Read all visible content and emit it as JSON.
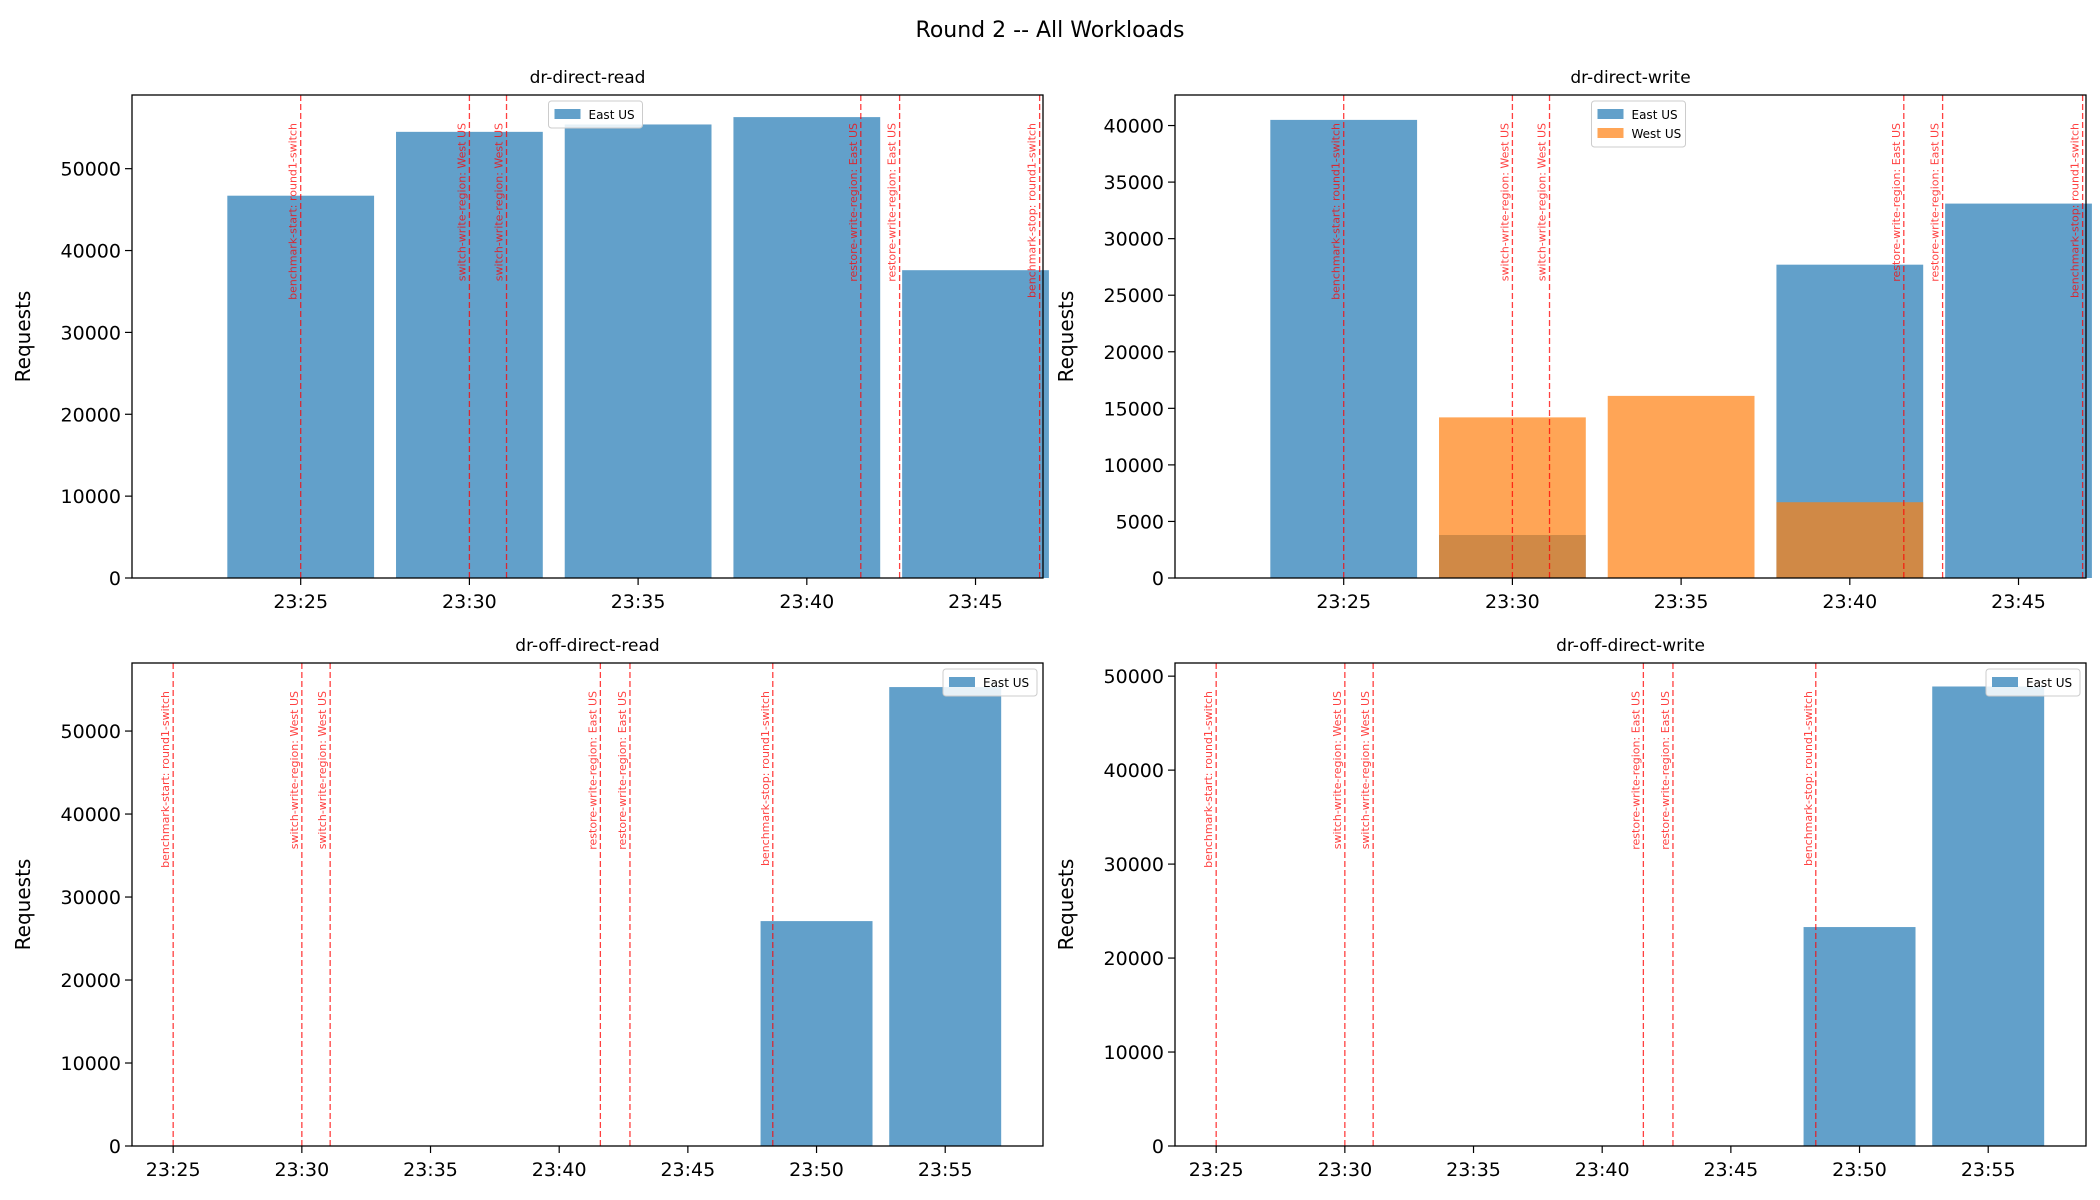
{
  "figure_title": "Round 2 -- All Workloads",
  "colors": {
    "East US": "#1f77b4",
    "West US": "#ff7f0e",
    "event_line": "#ff0000"
  },
  "chart_data": [
    {
      "type": "bar",
      "title": "dr-direct-read",
      "xlabel": "",
      "ylabel": "Requests",
      "ylim": [
        0,
        59000
      ],
      "yticks": [
        0,
        10000,
        20000,
        30000,
        40000,
        50000
      ],
      "x_minutes_range": [
        1400.0,
        1427.0
      ],
      "xticks": [
        {
          "value": 1405,
          "label": "23:25"
        },
        {
          "value": 1410,
          "label": "23:30"
        },
        {
          "value": 1415,
          "label": "23:35"
        },
        {
          "value": 1420,
          "label": "23:40"
        },
        {
          "value": 1425,
          "label": "23:45"
        }
      ],
      "bar_width_minutes": 4.35,
      "categories": [
        "23:25",
        "23:30",
        "23:35",
        "23:40",
        "23:45"
      ],
      "category_minutes": [
        1405,
        1410,
        1415,
        1420,
        1425
      ],
      "series": [
        {
          "name": "East US",
          "values": [
            46700,
            54500,
            55400,
            56300,
            37600
          ]
        }
      ],
      "legend": {
        "entries": [
          "East US"
        ],
        "placement": "top-center"
      },
      "events": [
        {
          "minute": 1405.0,
          "label": "benchmark-start: round1-switch"
        },
        {
          "minute": 1410.0,
          "label": "switch-write-region: West US"
        },
        {
          "minute": 1411.1,
          "label": "switch-write-region: West US"
        },
        {
          "minute": 1421.6,
          "label": "restore-write-region: East US"
        },
        {
          "minute": 1422.75,
          "label": "restore-write-region: East US"
        },
        {
          "minute": 1426.9,
          "label": "benchmark-stop: round1-switch"
        }
      ]
    },
    {
      "type": "bar",
      "title": "dr-direct-write",
      "xlabel": "",
      "ylabel": "Requests",
      "ylim": [
        0,
        42700
      ],
      "yticks": [
        0,
        5000,
        10000,
        15000,
        20000,
        25000,
        30000,
        35000,
        40000
      ],
      "x_minutes_range": [
        1400.0,
        1427.0
      ],
      "xticks": [
        {
          "value": 1405,
          "label": "23:25"
        },
        {
          "value": 1410,
          "label": "23:30"
        },
        {
          "value": 1415,
          "label": "23:35"
        },
        {
          "value": 1420,
          "label": "23:40"
        },
        {
          "value": 1425,
          "label": "23:45"
        }
      ],
      "bar_width_minutes": 4.35,
      "categories": [
        "23:25",
        "23:30",
        "23:35",
        "23:40",
        "23:45"
      ],
      "category_minutes": [
        1405,
        1410,
        1415,
        1420,
        1425
      ],
      "series": [
        {
          "name": "East US",
          "values": [
            40500,
            3800,
            0,
            27700,
            33100
          ]
        },
        {
          "name": "West US",
          "values": [
            0,
            14200,
            16100,
            6700,
            0
          ]
        }
      ],
      "legend": {
        "entries": [
          "East US",
          "West US"
        ],
        "placement": "top-center"
      },
      "events": [
        {
          "minute": 1405.0,
          "label": "benchmark-start: round1-switch"
        },
        {
          "minute": 1410.0,
          "label": "switch-write-region: West US"
        },
        {
          "minute": 1411.1,
          "label": "switch-write-region: West US"
        },
        {
          "minute": 1421.6,
          "label": "restore-write-region: East US"
        },
        {
          "minute": 1422.75,
          "label": "restore-write-region: East US"
        },
        {
          "minute": 1426.9,
          "label": "benchmark-stop: round1-switch"
        }
      ]
    },
    {
      "type": "bar",
      "title": "dr-off-direct-read",
      "xlabel": "",
      "ylabel": "Requests",
      "ylim": [
        0,
        58200
      ],
      "yticks": [
        0,
        10000,
        20000,
        30000,
        40000,
        50000
      ],
      "x_minutes_range": [
        1403.4,
        1438.8
      ],
      "xticks": [
        {
          "value": 1405,
          "label": "23:25"
        },
        {
          "value": 1410,
          "label": "23:30"
        },
        {
          "value": 1415,
          "label": "23:35"
        },
        {
          "value": 1420,
          "label": "23:40"
        },
        {
          "value": 1425,
          "label": "23:45"
        },
        {
          "value": 1430,
          "label": "23:50"
        },
        {
          "value": 1435,
          "label": "23:55"
        }
      ],
      "bar_width_minutes": 4.35,
      "categories": [
        "23:50",
        "23:55"
      ],
      "category_minutes": [
        1430,
        1435
      ],
      "series": [
        {
          "name": "East US",
          "values": [
            27100,
            55300
          ]
        }
      ],
      "legend": {
        "entries": [
          "East US"
        ],
        "placement": "top-right"
      },
      "events": [
        {
          "minute": 1405.0,
          "label": "benchmark-start: round1-switch"
        },
        {
          "minute": 1410.0,
          "label": "switch-write-region: West US"
        },
        {
          "minute": 1411.1,
          "label": "switch-write-region: West US"
        },
        {
          "minute": 1421.6,
          "label": "restore-write-region: East US"
        },
        {
          "minute": 1422.75,
          "label": "restore-write-region: East US"
        },
        {
          "minute": 1428.3,
          "label": "benchmark-stop: round1-switch"
        }
      ]
    },
    {
      "type": "bar",
      "title": "dr-off-direct-write",
      "xlabel": "",
      "ylabel": "Requests",
      "ylim": [
        0,
        51400
      ],
      "yticks": [
        0,
        10000,
        20000,
        30000,
        40000,
        50000
      ],
      "x_minutes_range": [
        1403.4,
        1438.8
      ],
      "xticks": [
        {
          "value": 1405,
          "label": "23:25"
        },
        {
          "value": 1410,
          "label": "23:30"
        },
        {
          "value": 1415,
          "label": "23:35"
        },
        {
          "value": 1420,
          "label": "23:40"
        },
        {
          "value": 1425,
          "label": "23:45"
        },
        {
          "value": 1430,
          "label": "23:50"
        },
        {
          "value": 1435,
          "label": "23:55"
        }
      ],
      "bar_width_minutes": 4.35,
      "categories": [
        "23:50",
        "23:55"
      ],
      "category_minutes": [
        1430,
        1435
      ],
      "series": [
        {
          "name": "East US",
          "values": [
            23300,
            48900
          ]
        }
      ],
      "legend": {
        "entries": [
          "East US"
        ],
        "placement": "top-right"
      },
      "events": [
        {
          "minute": 1405.0,
          "label": "benchmark-start: round1-switch"
        },
        {
          "minute": 1410.0,
          "label": "switch-write-region: West US"
        },
        {
          "minute": 1411.1,
          "label": "switch-write-region: West US"
        },
        {
          "minute": 1421.6,
          "label": "restore-write-region: East US"
        },
        {
          "minute": 1422.75,
          "label": "restore-write-region: East US"
        },
        {
          "minute": 1428.3,
          "label": "benchmark-stop: round1-switch"
        }
      ]
    }
  ]
}
